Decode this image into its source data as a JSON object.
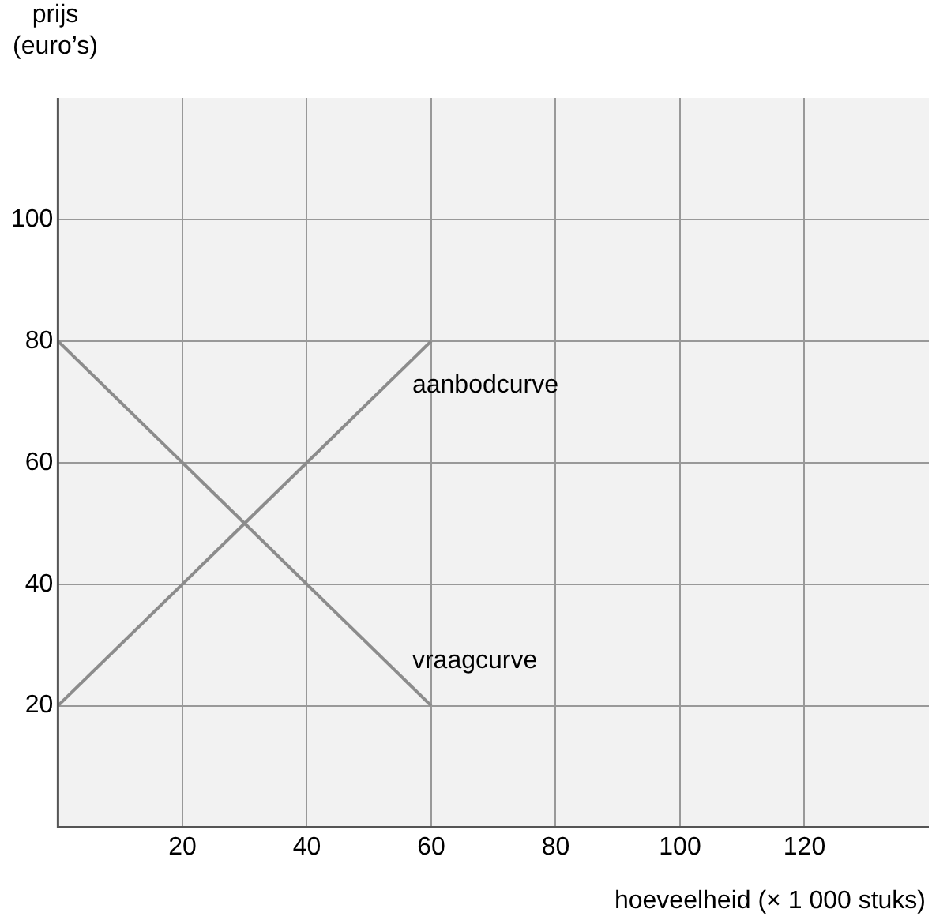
{
  "chart_data": {
    "type": "line",
    "xlabel": "hoeveelheid (× 1 000 stuks)",
    "ylabel": "prijs\n(euro’s)",
    "xlim": [
      0,
      140
    ],
    "xticks": [
      20,
      40,
      60,
      80,
      100,
      120
    ],
    "ylim": [
      0,
      120
    ],
    "yticks": [
      20,
      40,
      60,
      80,
      100
    ],
    "x": [
      0,
      60
    ],
    "grid": true,
    "legend": false,
    "marker": "none",
    "line_style": "solid",
    "series": [
      {
        "name": "aanbodcurve",
        "color": "#8c8c8c",
        "values": [
          20,
          80
        ]
      },
      {
        "name": "vraagcurve",
        "color": "#8c8c8c",
        "values": [
          80,
          20
        ]
      }
    ]
  }
}
